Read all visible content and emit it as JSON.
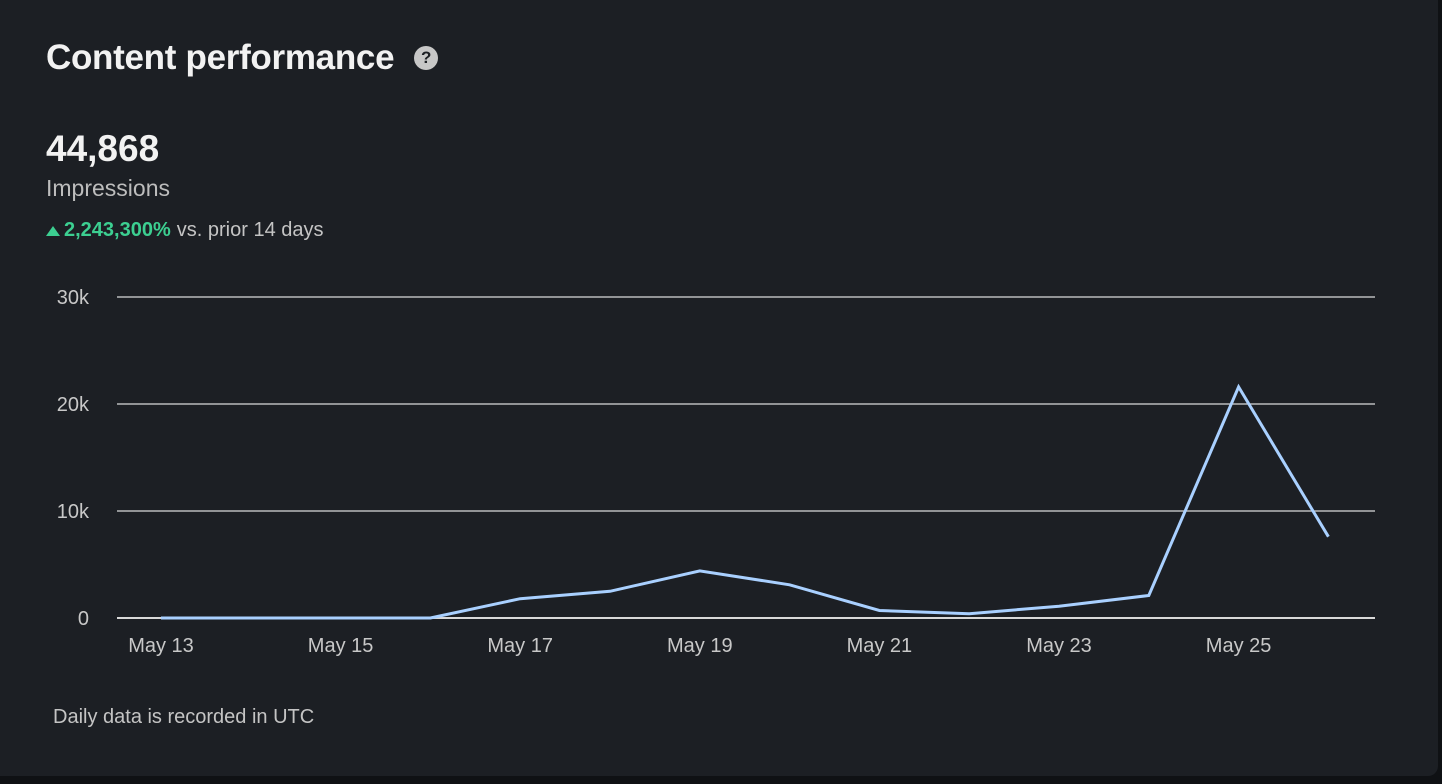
{
  "header": {
    "title": "Content performance",
    "help_icon": "question-circle-icon"
  },
  "metric": {
    "value": "44,868",
    "label": "Impressions",
    "change_value": "2,243,300%",
    "change_suffix": "vs. prior 14 days",
    "change_icon": "triangle-up-icon"
  },
  "footnote": "Daily data is recorded in UTC",
  "colors": {
    "line": "#a9d0ff",
    "grid": "#d9d9d9",
    "positive": "#3ccf91",
    "background": "#1c1f24"
  },
  "chart_data": {
    "type": "line",
    "title": "",
    "xlabel": "",
    "ylabel": "",
    "x": [
      "May 13",
      "May 14",
      "May 15",
      "May 16",
      "May 17",
      "May 18",
      "May 19",
      "May 20",
      "May 21",
      "May 22",
      "May 23",
      "May 24",
      "May 25",
      "May 26"
    ],
    "x_tick_labels": [
      "May 13",
      "May 15",
      "May 17",
      "May 19",
      "May 21",
      "May 23",
      "May 25"
    ],
    "y_ticks": [
      0,
      10000,
      20000,
      30000
    ],
    "y_tick_labels": [
      "0",
      "10k",
      "20k",
      "30k"
    ],
    "ylim": [
      0,
      30000
    ],
    "grid": true,
    "legend": "none",
    "series": [
      {
        "values": [
          0,
          0,
          0,
          0,
          1800,
          2500,
          4400,
          3100,
          700,
          400,
          1100,
          2100,
          21600,
          7600
        ]
      }
    ]
  }
}
